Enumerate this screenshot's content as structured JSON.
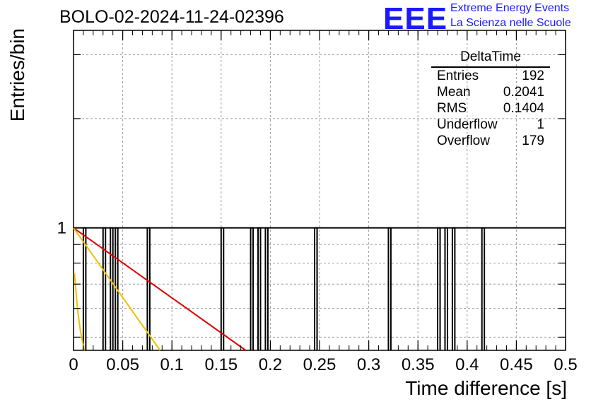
{
  "title": "BOLO-02-2024-11-24-02396",
  "logo": {
    "mark": "EEE",
    "line1": "Extreme Energy Events",
    "line2": "La Scienza nelle Scuole"
  },
  "stats": {
    "name": "DeltaTime",
    "rows": [
      {
        "label": "Entries",
        "value": "192"
      },
      {
        "label": "Mean",
        "value": "0.2041"
      },
      {
        "label": "RMS",
        "value": "0.1404"
      },
      {
        "label": "Underflow",
        "value": "1"
      },
      {
        "label": "Overflow",
        "value": "179"
      }
    ]
  },
  "chart_data": {
    "type": "bar",
    "histogram": "DeltaTime",
    "xlabel": "Time difference [s]",
    "ylabel": "Entries/bin",
    "xlim": [
      0,
      0.5
    ],
    "ylim_log": [
      0.46,
      3.5
    ],
    "log_y": true,
    "grid": true,
    "bin_width": 0.0025,
    "x_ticks": [
      "0",
      "0.05",
      "0.1",
      "0.15",
      "0.2",
      "0.25",
      "0.3",
      "0.35",
      "0.4",
      "0.45",
      "0.5"
    ],
    "y_ticks": [
      "1"
    ],
    "bins": [
      {
        "x": 0.01,
        "value": 1
      },
      {
        "x": 0.03,
        "value": 1
      },
      {
        "x": 0.0375,
        "value": 1
      },
      {
        "x": 0.0425,
        "value": 1
      },
      {
        "x": 0.075,
        "value": 1
      },
      {
        "x": 0.15,
        "value": 1
      },
      {
        "x": 0.18,
        "value": 1
      },
      {
        "x": 0.1875,
        "value": 1
      },
      {
        "x": 0.195,
        "value": 1
      },
      {
        "x": 0.245,
        "value": 1
      },
      {
        "x": 0.32,
        "value": 1
      },
      {
        "x": 0.37,
        "value": 1
      },
      {
        "x": 0.3775,
        "value": 1
      },
      {
        "x": 0.385,
        "value": 1
      },
      {
        "x": 0.415,
        "value": 1
      }
    ],
    "fit_curves": [
      {
        "color": "#e00000",
        "points": [
          [
            0.0,
            1.0
          ],
          [
            0.175,
            0.46
          ]
        ]
      },
      {
        "color": "#f0c000",
        "points": [
          [
            0.0,
            1.0
          ],
          [
            0.088,
            0.46
          ]
        ]
      },
      {
        "color": "#f0c000",
        "points": [
          [
            0.001,
            0.75
          ],
          [
            0.004,
            0.6
          ],
          [
            0.007,
            0.52
          ],
          [
            0.011,
            0.46
          ]
        ]
      }
    ]
  }
}
